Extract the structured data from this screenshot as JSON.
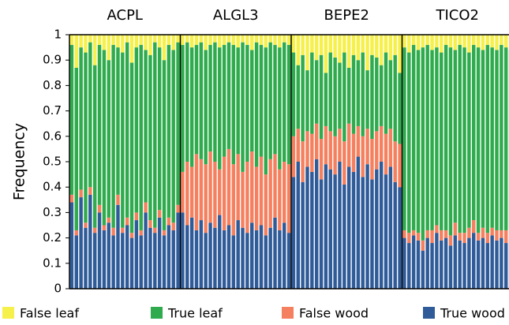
{
  "chart_data": [
    {
      "type": "stacked_bar",
      "title": "ACPL",
      "ylabel": "Frequency",
      "categories": [
        null,
        null,
        null,
        null,
        null,
        null,
        null,
        null,
        null,
        null,
        null,
        null,
        null,
        null,
        null,
        null,
        null,
        null,
        null,
        null,
        null,
        null,
        null,
        null
      ],
      "ylim": [
        0,
        1
      ],
      "yticks": [
        0,
        0.1,
        0.2,
        0.3,
        0.4,
        0.5,
        0.6,
        0.7,
        0.8,
        0.9,
        1
      ],
      "series": [
        {
          "name": "True wood",
          "color": "#2f5b99",
          "values": [
            0.34,
            0.21,
            0.36,
            0.24,
            0.37,
            0.22,
            0.3,
            0.23,
            0.26,
            0.21,
            0.33,
            0.22,
            0.25,
            0.2,
            0.27,
            0.21,
            0.3,
            0.24,
            0.22,
            0.28,
            0.21,
            0.25,
            0.23,
            0.3
          ]
        },
        {
          "name": "False wood",
          "color": "#f5805f",
          "values": [
            0.03,
            0.02,
            0.03,
            0.02,
            0.03,
            0.02,
            0.03,
            0.02,
            0.02,
            0.03,
            0.04,
            0.02,
            0.03,
            0.02,
            0.03,
            0.02,
            0.04,
            0.03,
            0.02,
            0.03,
            0.02,
            0.03,
            0.03,
            0.03
          ]
        },
        {
          "name": "True leaf",
          "color": "#2fab4e",
          "values": [
            0.59,
            0.64,
            0.56,
            0.67,
            0.57,
            0.64,
            0.63,
            0.69,
            0.62,
            0.72,
            0.58,
            0.69,
            0.69,
            0.67,
            0.65,
            0.73,
            0.6,
            0.65,
            0.73,
            0.64,
            0.67,
            0.68,
            0.68,
            0.64
          ]
        },
        {
          "name": "False leaf",
          "color": "#f6f04a",
          "values": [
            0.04,
            0.13,
            0.05,
            0.07,
            0.03,
            0.12,
            0.04,
            0.06,
            0.1,
            0.04,
            0.05,
            0.07,
            0.03,
            0.11,
            0.05,
            0.04,
            0.06,
            0.08,
            0.03,
            0.05,
            0.1,
            0.04,
            0.06,
            0.03
          ]
        }
      ]
    },
    {
      "type": "stacked_bar",
      "title": "ALGL3",
      "categories": [
        null,
        null,
        null,
        null,
        null,
        null,
        null,
        null,
        null,
        null,
        null,
        null,
        null,
        null,
        null,
        null,
        null,
        null,
        null,
        null,
        null,
        null,
        null,
        null
      ],
      "ylim": [
        0,
        1
      ],
      "series": [
        {
          "name": "True wood",
          "color": "#2f5b99",
          "values": [
            0.3,
            0.25,
            0.28,
            0.23,
            0.27,
            0.22,
            0.26,
            0.24,
            0.29,
            0.23,
            0.25,
            0.21,
            0.27,
            0.24,
            0.22,
            0.26,
            0.23,
            0.25,
            0.21,
            0.24,
            0.28,
            0.23,
            0.26,
            0.22
          ]
        },
        {
          "name": "False wood",
          "color": "#f5805f",
          "values": [
            0.16,
            0.25,
            0.2,
            0.3,
            0.24,
            0.27,
            0.28,
            0.26,
            0.18,
            0.29,
            0.3,
            0.28,
            0.26,
            0.22,
            0.28,
            0.28,
            0.25,
            0.27,
            0.24,
            0.27,
            0.25,
            0.24,
            0.24,
            0.27
          ]
        },
        {
          "name": "True leaf",
          "color": "#2fab4e",
          "values": [
            0.5,
            0.47,
            0.47,
            0.43,
            0.46,
            0.45,
            0.42,
            0.47,
            0.48,
            0.44,
            0.42,
            0.47,
            0.42,
            0.51,
            0.46,
            0.4,
            0.49,
            0.44,
            0.5,
            0.46,
            0.43,
            0.48,
            0.47,
            0.47
          ]
        },
        {
          "name": "False leaf",
          "color": "#f6f04a",
          "values": [
            0.04,
            0.03,
            0.05,
            0.04,
            0.03,
            0.06,
            0.04,
            0.03,
            0.05,
            0.04,
            0.03,
            0.04,
            0.05,
            0.03,
            0.04,
            0.06,
            0.03,
            0.04,
            0.05,
            0.03,
            0.04,
            0.05,
            0.03,
            0.04
          ]
        }
      ]
    },
    {
      "type": "stacked_bar",
      "title": "BEPE2",
      "categories": [
        null,
        null,
        null,
        null,
        null,
        null,
        null,
        null,
        null,
        null,
        null,
        null,
        null,
        null,
        null,
        null,
        null,
        null,
        null,
        null,
        null,
        null,
        null,
        null
      ],
      "ylim": [
        0,
        1
      ],
      "series": [
        {
          "name": "True wood",
          "color": "#2f5b99",
          "values": [
            0.44,
            0.5,
            0.42,
            0.48,
            0.46,
            0.51,
            0.43,
            0.49,
            0.47,
            0.45,
            0.5,
            0.41,
            0.48,
            0.46,
            0.52,
            0.44,
            0.49,
            0.43,
            0.47,
            0.5,
            0.45,
            0.48,
            0.42,
            0.4
          ]
        },
        {
          "name": "False wood",
          "color": "#f5805f",
          "values": [
            0.16,
            0.13,
            0.16,
            0.14,
            0.15,
            0.14,
            0.16,
            0.15,
            0.15,
            0.15,
            0.13,
            0.17,
            0.17,
            0.15,
            0.12,
            0.16,
            0.14,
            0.16,
            0.15,
            0.14,
            0.16,
            0.15,
            0.16,
            0.17
          ]
        },
        {
          "name": "True leaf",
          "color": "#2fab4e",
          "values": [
            0.33,
            0.25,
            0.34,
            0.24,
            0.32,
            0.25,
            0.33,
            0.21,
            0.31,
            0.31,
            0.26,
            0.35,
            0.22,
            0.31,
            0.26,
            0.33,
            0.23,
            0.33,
            0.29,
            0.24,
            0.32,
            0.27,
            0.34,
            0.28
          ]
        },
        {
          "name": "False leaf",
          "color": "#f6f04a",
          "values": [
            0.07,
            0.12,
            0.08,
            0.14,
            0.07,
            0.1,
            0.08,
            0.15,
            0.07,
            0.09,
            0.11,
            0.07,
            0.13,
            0.08,
            0.1,
            0.07,
            0.14,
            0.08,
            0.09,
            0.12,
            0.07,
            0.1,
            0.08,
            0.15
          ]
        }
      ]
    },
    {
      "type": "stacked_bar",
      "title": "TICO2",
      "categories": [
        null,
        null,
        null,
        null,
        null,
        null,
        null,
        null,
        null,
        null,
        null,
        null,
        null,
        null,
        null,
        null,
        null,
        null,
        null,
        null,
        null,
        null,
        null,
        null
      ],
      "ylim": [
        0,
        1
      ],
      "series": [
        {
          "name": "True wood",
          "color": "#2f5b99",
          "values": [
            0.2,
            0.18,
            0.21,
            0.19,
            0.15,
            0.2,
            0.18,
            0.22,
            0.19,
            0.2,
            0.17,
            0.21,
            0.19,
            0.18,
            0.2,
            0.22,
            0.19,
            0.2,
            0.18,
            0.21,
            0.19,
            0.2,
            0.18,
            0.2
          ]
        },
        {
          "name": "False wood",
          "color": "#f5805f",
          "values": [
            0.03,
            0.04,
            0.02,
            0.03,
            0.04,
            0.03,
            0.05,
            0.03,
            0.04,
            0.03,
            0.04,
            0.05,
            0.03,
            0.04,
            0.04,
            0.05,
            0.03,
            0.04,
            0.04,
            0.03,
            0.04,
            0.03,
            0.05,
            0.04
          ]
        },
        {
          "name": "True leaf",
          "color": "#2fab4e",
          "values": [
            0.72,
            0.71,
            0.73,
            0.72,
            0.76,
            0.73,
            0.71,
            0.7,
            0.7,
            0.73,
            0.74,
            0.68,
            0.74,
            0.73,
            0.69,
            0.69,
            0.73,
            0.7,
            0.74,
            0.71,
            0.71,
            0.73,
            0.72,
            0.7
          ]
        },
        {
          "name": "False leaf",
          "color": "#f6f04a",
          "values": [
            0.05,
            0.07,
            0.04,
            0.06,
            0.05,
            0.04,
            0.06,
            0.05,
            0.07,
            0.04,
            0.05,
            0.06,
            0.04,
            0.05,
            0.07,
            0.04,
            0.05,
            0.06,
            0.04,
            0.05,
            0.06,
            0.04,
            0.05,
            0.06
          ]
        }
      ]
    }
  ]
}
